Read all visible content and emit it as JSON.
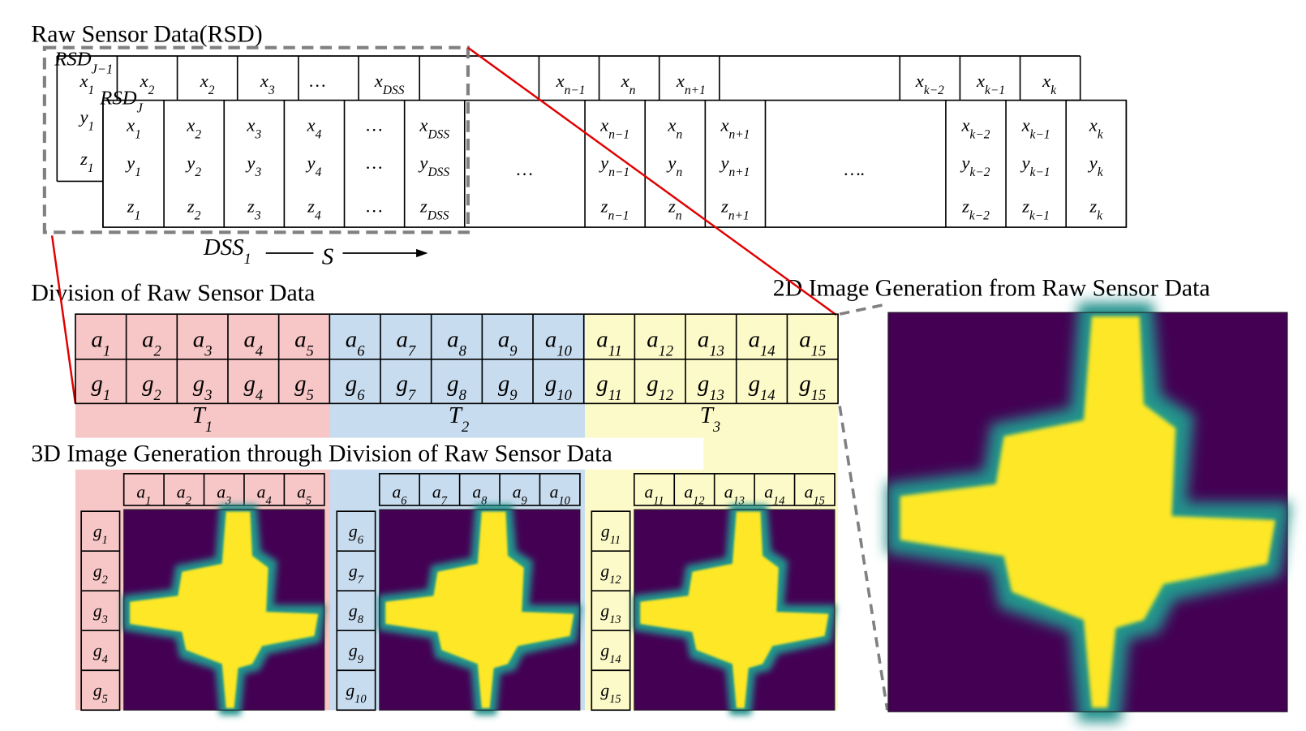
{
  "rsd": {
    "title": "Raw Sensor Data(RSD)",
    "back_label": {
      "v": "RSD",
      "sub": "J−1"
    },
    "front_label": {
      "v": "RSD",
      "sub": "J"
    },
    "back_side": [
      {
        "v": "x",
        "sub": "1"
      },
      {
        "v": "y",
        "sub": "1"
      },
      {
        "v": "z",
        "sub": "1"
      }
    ],
    "back_row": [
      {
        "v": "x",
        "sub": "2"
      },
      {
        "v": "x",
        "sub": "2"
      },
      {
        "v": "x",
        "sub": "3"
      },
      {
        "v": "…"
      },
      {
        "v": "x",
        "sub": "DSS"
      },
      {
        "v": "x",
        "sub": "n−1"
      },
      {
        "v": "x",
        "sub": "n"
      },
      {
        "v": "x",
        "sub": "n+1"
      },
      {
        "v": "x",
        "sub": "k−2"
      },
      {
        "v": "x",
        "sub": "k−1"
      },
      {
        "v": "x",
        "sub": "k"
      }
    ],
    "front_columns": [
      [
        {
          "v": "x",
          "sub": "1"
        },
        {
          "v": "y",
          "sub": "1"
        },
        {
          "v": "z",
          "sub": "1"
        }
      ],
      [
        {
          "v": "x",
          "sub": "2"
        },
        {
          "v": "y",
          "sub": "2"
        },
        {
          "v": "z",
          "sub": "2"
        }
      ],
      [
        {
          "v": "x",
          "sub": "3"
        },
        {
          "v": "y",
          "sub": "3"
        },
        {
          "v": "z",
          "sub": "3"
        }
      ],
      [
        {
          "v": "x",
          "sub": "4"
        },
        {
          "v": "y",
          "sub": "4"
        },
        {
          "v": "z",
          "sub": "4"
        }
      ],
      [
        {
          "v": "…"
        },
        {
          "v": "…"
        },
        {
          "v": "…"
        }
      ],
      [
        {
          "v": "x",
          "sub": "DSS"
        },
        {
          "v": "y",
          "sub": "DSS"
        },
        {
          "v": "z",
          "sub": "DSS"
        }
      ],
      [
        {
          "v": "x",
          "sub": "n−1"
        },
        {
          "v": "y",
          "sub": "n−1"
        },
        {
          "v": "z",
          "sub": "n−1"
        }
      ],
      [
        {
          "v": "x",
          "sub": "n"
        },
        {
          "v": "y",
          "sub": "n"
        },
        {
          "v": "z",
          "sub": "n"
        }
      ],
      [
        {
          "v": "x",
          "sub": "n+1"
        },
        {
          "v": "y",
          "sub": "n+1"
        },
        {
          "v": "z",
          "sub": "n+1"
        }
      ],
      [
        {
          "v": "x",
          "sub": "k−2"
        },
        {
          "v": "y",
          "sub": "k−2"
        },
        {
          "v": "z",
          "sub": "k−2"
        }
      ],
      [
        {
          "v": "x",
          "sub": "k−1"
        },
        {
          "v": "y",
          "sub": "k−1"
        },
        {
          "v": "z",
          "sub": "k−1"
        }
      ],
      [
        {
          "v": "x",
          "sub": "k"
        },
        {
          "v": "y",
          "sub": "k"
        },
        {
          "v": "z",
          "sub": "k"
        }
      ]
    ],
    "ellipses": [
      {
        "v": "…"
      },
      {
        "v": "…."
      }
    ],
    "dss_label": {
      "v": "DSS",
      "sub": "1"
    },
    "arrow_label": {
      "v": "S"
    }
  },
  "division": {
    "title": "Division of Raw Sensor Data",
    "a": [
      {
        "v": "a",
        "sub": "1"
      },
      {
        "v": "a",
        "sub": "2"
      },
      {
        "v": "a",
        "sub": "3"
      },
      {
        "v": "a",
        "sub": "4"
      },
      {
        "v": "a",
        "sub": "5"
      },
      {
        "v": "a",
        "sub": "6"
      },
      {
        "v": "a",
        "sub": "7"
      },
      {
        "v": "a",
        "sub": "8"
      },
      {
        "v": "a",
        "sub": "9"
      },
      {
        "v": "a",
        "sub": "10"
      },
      {
        "v": "a",
        "sub": "11"
      },
      {
        "v": "a",
        "sub": "12"
      },
      {
        "v": "a",
        "sub": "13"
      },
      {
        "v": "a",
        "sub": "14"
      },
      {
        "v": "a",
        "sub": "15"
      }
    ],
    "g": [
      {
        "v": "g",
        "sub": "1"
      },
      {
        "v": "g",
        "sub": "2"
      },
      {
        "v": "g",
        "sub": "3"
      },
      {
        "v": "g",
        "sub": "4"
      },
      {
        "v": "g",
        "sub": "5"
      },
      {
        "v": "g",
        "sub": "6"
      },
      {
        "v": "g",
        "sub": "7"
      },
      {
        "v": "g",
        "sub": "8"
      },
      {
        "v": "g",
        "sub": "9"
      },
      {
        "v": "g",
        "sub": "10"
      },
      {
        "v": "g",
        "sub": "11"
      },
      {
        "v": "g",
        "sub": "12"
      },
      {
        "v": "g",
        "sub": "13"
      },
      {
        "v": "g",
        "sub": "14"
      },
      {
        "v": "g",
        "sub": "15"
      }
    ],
    "tasks": [
      {
        "v": "T",
        "sub": "1"
      },
      {
        "v": "T",
        "sub": "2"
      },
      {
        "v": "T",
        "sub": "3"
      }
    ]
  },
  "image3d": {
    "title": "3D Image Generation through Division of Raw Sensor Data",
    "panels": [
      {
        "a": [
          {
            "v": "a",
            "sub": "1"
          },
          {
            "v": "a",
            "sub": "2"
          },
          {
            "v": "a",
            "sub": "3"
          },
          {
            "v": "a",
            "sub": "4"
          },
          {
            "v": "a",
            "sub": "5"
          }
        ],
        "g": [
          {
            "v": "g",
            "sub": "1"
          },
          {
            "v": "g",
            "sub": "2"
          },
          {
            "v": "g",
            "sub": "3"
          },
          {
            "v": "g",
            "sub": "4"
          },
          {
            "v": "g",
            "sub": "5"
          }
        ]
      },
      {
        "a": [
          {
            "v": "a",
            "sub": "6"
          },
          {
            "v": "a",
            "sub": "7"
          },
          {
            "v": "a",
            "sub": "8"
          },
          {
            "v": "a",
            "sub": "9"
          },
          {
            "v": "a",
            "sub": "10"
          }
        ],
        "g": [
          {
            "v": "g",
            "sub": "6"
          },
          {
            "v": "g",
            "sub": "7"
          },
          {
            "v": "g",
            "sub": "8"
          },
          {
            "v": "g",
            "sub": "9"
          },
          {
            "v": "g",
            "sub": "10"
          }
        ]
      },
      {
        "a": [
          {
            "v": "a",
            "sub": "11"
          },
          {
            "v": "a",
            "sub": "12"
          },
          {
            "v": "a",
            "sub": "13"
          },
          {
            "v": "a",
            "sub": "14"
          },
          {
            "v": "a",
            "sub": "15"
          }
        ],
        "g": [
          {
            "v": "g",
            "sub": "11"
          },
          {
            "v": "g",
            "sub": "12"
          },
          {
            "v": "g",
            "sub": "13"
          },
          {
            "v": "g",
            "sub": "14"
          },
          {
            "v": "g",
            "sub": "15"
          }
        ]
      }
    ]
  },
  "image2d": {
    "title": "2D Image Generation from Raw Sensor Data"
  }
}
